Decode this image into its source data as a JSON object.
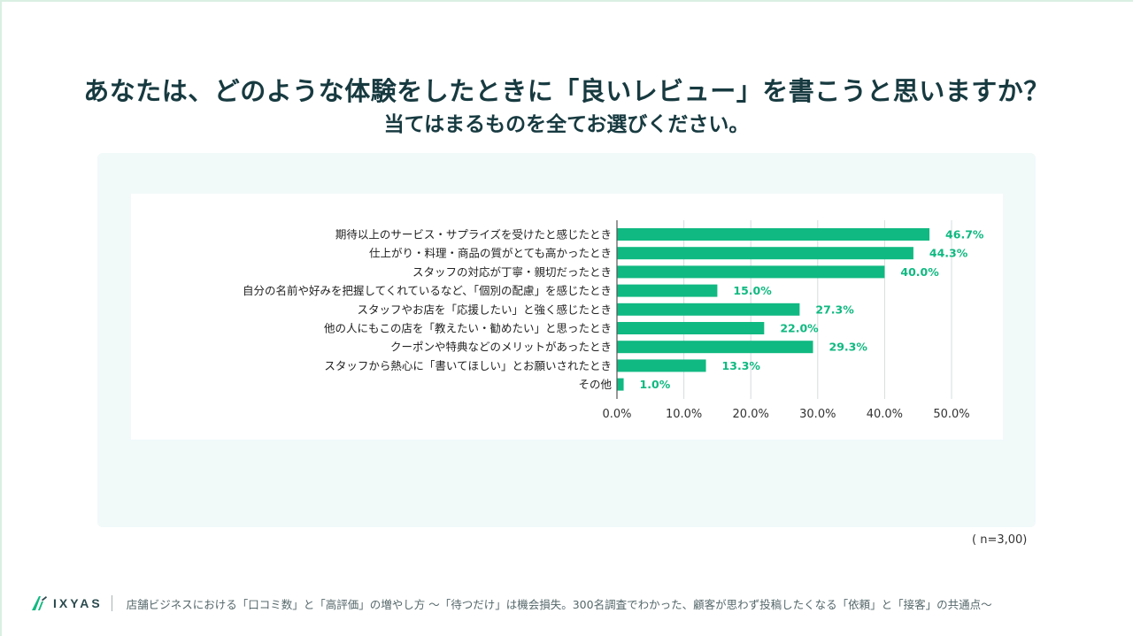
{
  "title": "あなたは、どのような体験をしたときに「良いレビュー」を書こうと思いますか？",
  "subtitle": "当てはまるものを全てお選びください。",
  "chart_data": {
    "type": "bar",
    "orientation": "horizontal",
    "categories": [
      "期待以上のサービス・サプライズを受けたと感じたとき",
      "仕上がり・料理・商品の質がとても高かったとき",
      "スタッフの対応が丁寧・親切だったとき",
      "自分の名前や好みを把握してくれているなど、「個別の配慮」を感じたとき",
      "スタッフやお店を「応援したい」と強く感じたとき",
      "他の人にもこの店を「教えたい・勧めたい」と思ったとき",
      "クーポンや特典などのメリットがあったとき",
      "スタッフから熱心に「書いてほしい」とお願いされたとき",
      "その他"
    ],
    "values": [
      46.7,
      44.3,
      40.0,
      15.0,
      27.3,
      22.0,
      29.3,
      13.3,
      1.0
    ],
    "value_labels": [
      "46.7%",
      "44.3%",
      "40.0%",
      "15.0%",
      "27.3%",
      "22.0%",
      "29.3%",
      "13.3%",
      "1.0%"
    ],
    "xticks": [
      0,
      10,
      20,
      30,
      40,
      50
    ],
    "xtick_labels": [
      "0.0%",
      "10.0%",
      "20.0%",
      "30.0%",
      "40.0%",
      "50.0%"
    ],
    "xlim": [
      0,
      50
    ],
    "grid": true,
    "bar_color": "#10b981",
    "label_color": "#10b981"
  },
  "sample_note": "( n=3,00)",
  "footer": {
    "brand": "IXYAS",
    "text": "店舗ビジネスにおける「口コミ数」と「高評価」の増やし方 〜「待つだけ」は機会損失。300名調査でわかった、顧客が思わず投稿したくなる「依頼」と「接客」の共通点〜"
  },
  "colors": {
    "title": "#173a40",
    "panel": "#f1f9f9",
    "accent": "#10b981"
  }
}
